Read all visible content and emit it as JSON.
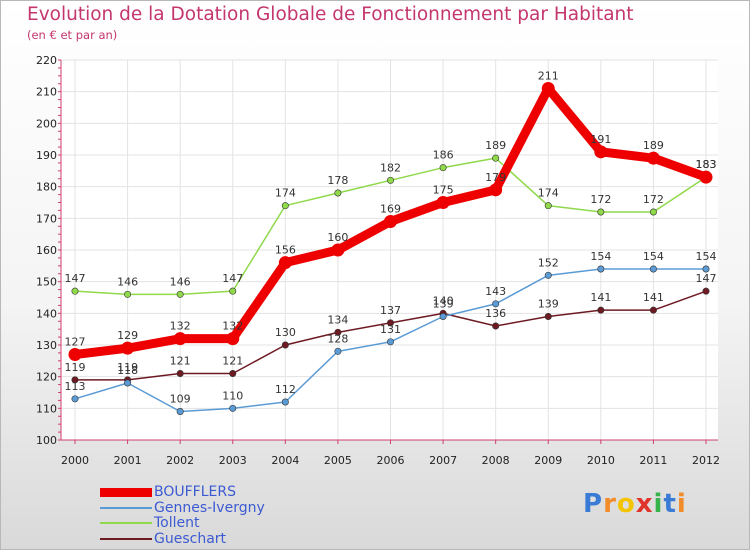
{
  "chart_data": {
    "type": "line",
    "title": "Evolution de la Dotation Globale de Fonctionnement par Habitant",
    "subtitle": "(en € et par an)",
    "x": [
      "2000",
      "2001",
      "2002",
      "2003",
      "2004",
      "2005",
      "2006",
      "2007",
      "2008",
      "2009",
      "2010",
      "2011",
      "2012"
    ],
    "ylim": [
      100,
      220
    ],
    "yticks": [
      "100",
      "110",
      "120",
      "130",
      "140",
      "150",
      "160",
      "170",
      "180",
      "190",
      "200",
      "210",
      "220"
    ],
    "series": [
      {
        "name": "BOUFFLERS",
        "color": "#ee0000",
        "values": [
          127,
          129,
          132,
          132,
          156,
          160,
          169,
          175,
          179,
          211,
          191,
          189,
          183
        ]
      },
      {
        "name": "Gennes-Ivergny",
        "color": "#5b9bd5",
        "values": [
          113,
          118,
          109,
          110,
          112,
          128,
          131,
          139,
          143,
          152,
          154,
          154,
          154
        ]
      },
      {
        "name": "Tollent",
        "color": "#8fd94a",
        "values": [
          147,
          146,
          146,
          147,
          174,
          178,
          182,
          186,
          189,
          174,
          172,
          172,
          183
        ]
      },
      {
        "name": "Gueschart",
        "color": "#6e1a22",
        "values": [
          119,
          119,
          121,
          121,
          130,
          134,
          137,
          140,
          136,
          139,
          141,
          141,
          147
        ]
      }
    ]
  },
  "logo": {
    "letters": [
      "P",
      "r",
      "o",
      "x",
      "i",
      "t",
      "i"
    ],
    "colors": [
      "#3a7bd5",
      "#f28c28",
      "#f5c400",
      "#e0342a",
      "#36b34a",
      "#3a7bd5",
      "#f28c28"
    ]
  }
}
